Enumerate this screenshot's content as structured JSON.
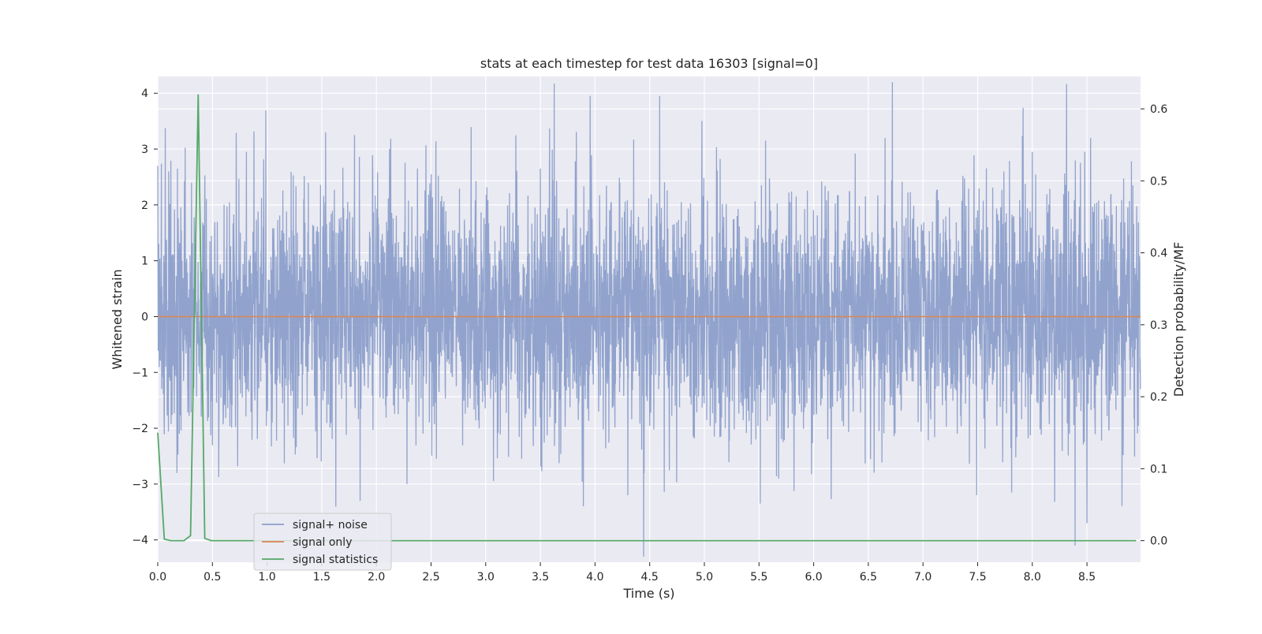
{
  "chart_data": {
    "type": "line",
    "title": "stats at each timestep for test data 16303 [signal=0]",
    "xlabel": "Time (s)",
    "ylabel": "Whitened strain",
    "y2label": "Detection probability/MF",
    "xlim": [
      0.0,
      8.99
    ],
    "ylim": [
      -4.4,
      4.3
    ],
    "y2lim": [
      -0.03,
      0.645
    ],
    "x_ticks": [
      "0.0",
      "0.5",
      "1.0",
      "1.5",
      "2.0",
      "2.5",
      "3.0",
      "3.5",
      "4.0",
      "4.5",
      "5.0",
      "5.5",
      "6.0",
      "6.5",
      "7.0",
      "7.5",
      "8.0",
      "8.5"
    ],
    "y_ticks": [
      "4",
      "3",
      "2",
      "1",
      "0",
      "−1",
      "−2",
      "−3",
      "−4"
    ],
    "y2_ticks": [
      "0.6",
      "0.5",
      "0.4",
      "0.3",
      "0.2",
      "0.1",
      "0.0"
    ],
    "grid": true,
    "legend_position": "lower-left",
    "series": [
      {
        "name": "signal+ noise",
        "axis": "left",
        "color": "#8c9fca",
        "description_of_values": "whitened noise samples",
        "sample_rate_hz": 450,
        "duration_s": 8.99,
        "typical_range": [
          -2.0,
          2.3
        ],
        "peaks": [
          {
            "x": 0.0,
            "y": 2.7
          },
          {
            "x": 0.1,
            "y": 2.6
          },
          {
            "x": 0.18,
            "y": 2.65
          },
          {
            "x": 0.81,
            "y": 2.95
          },
          {
            "x": 1.8,
            "y": 3.25
          },
          {
            "x": 2.12,
            "y": 3.0
          },
          {
            "x": 3.5,
            "y": 2.65
          },
          {
            "x": 4.59,
            "y": 3.95
          },
          {
            "x": 5.56,
            "y": 3.15
          },
          {
            "x": 8.0,
            "y": 2.95
          },
          {
            "x": 8.48,
            "y": 2.95
          },
          {
            "x": 1.85,
            "y": -3.3
          },
          {
            "x": 2.28,
            "y": -3.0
          },
          {
            "x": 4.3,
            "y": -3.2
          },
          {
            "x": 5.51,
            "y": -3.35
          },
          {
            "x": 7.49,
            "y": -3.2
          },
          {
            "x": 7.81,
            "y": -3.15
          },
          {
            "x": 8.39,
            "y": -4.1
          },
          {
            "x": 8.5,
            "y": -3.7
          }
        ]
      },
      {
        "name": "signal only",
        "axis": "left",
        "color": "#dd8452",
        "x": [
          0.0,
          8.99
        ],
        "y": [
          0.0,
          0.0
        ]
      },
      {
        "name": "signal statistics",
        "axis": "right",
        "color": "#55a868",
        "x": [
          0.0,
          0.06,
          0.12,
          0.18,
          0.24,
          0.3,
          0.37,
          0.43,
          0.49,
          0.55,
          8.95
        ],
        "y": [
          0.15,
          0.002,
          0.0,
          0.0,
          0.0,
          0.007,
          0.62,
          0.003,
          0.0,
          0.0,
          0.0
        ]
      }
    ]
  }
}
